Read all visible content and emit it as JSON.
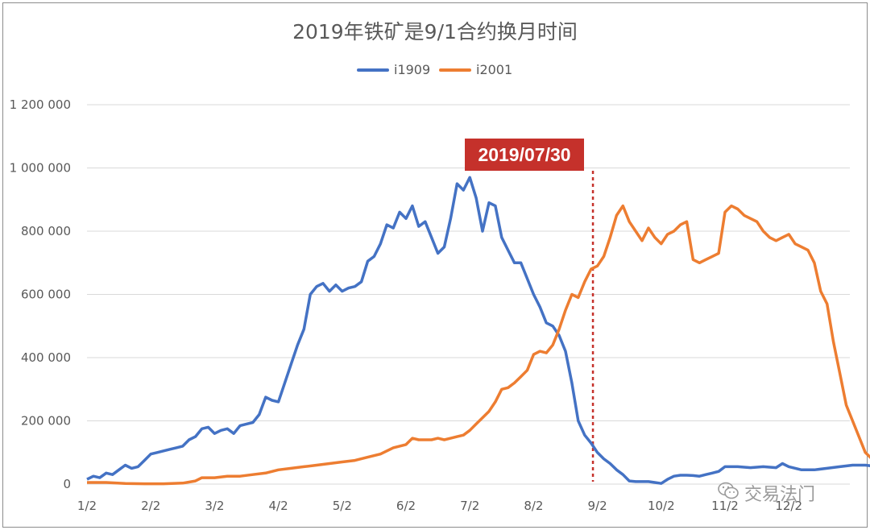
{
  "chart_data": {
    "type": "line",
    "title": "2019年铁矿是9/1合约换月时间",
    "ylim": [
      0,
      1200000
    ],
    "yticks": [
      "0",
      "200000",
      "400000",
      "600000",
      "800000",
      "1000000",
      "1200000"
    ],
    "categories": [
      "1/2",
      "2/2",
      "3/2",
      "4/2",
      "5/2",
      "6/2",
      "7/2",
      "8/2",
      "9/2",
      "10/2",
      "11/2",
      "12/2"
    ],
    "grid": true,
    "legend": "top",
    "marker": {
      "x": 7.93,
      "label": "2019/07/30",
      "color": "#c5312b"
    },
    "series": [
      {
        "name": "i1909",
        "color": "#4472c4",
        "points": [
          [
            0,
            15000
          ],
          [
            0.1,
            25000
          ],
          [
            0.2,
            20000
          ],
          [
            0.3,
            35000
          ],
          [
            0.4,
            30000
          ],
          [
            0.5,
            45000
          ],
          [
            0.6,
            60000
          ],
          [
            0.7,
            50000
          ],
          [
            0.8,
            55000
          ],
          [
            0.9,
            75000
          ],
          [
            1.0,
            95000
          ],
          [
            1.1,
            100000
          ],
          [
            1.2,
            105000
          ],
          [
            1.3,
            110000
          ],
          [
            1.4,
            115000
          ],
          [
            1.5,
            120000
          ],
          [
            1.6,
            140000
          ],
          [
            1.7,
            150000
          ],
          [
            1.8,
            175000
          ],
          [
            1.9,
            180000
          ],
          [
            2.0,
            160000
          ],
          [
            2.1,
            170000
          ],
          [
            2.2,
            175000
          ],
          [
            2.3,
            160000
          ],
          [
            2.4,
            185000
          ],
          [
            2.5,
            190000
          ],
          [
            2.6,
            195000
          ],
          [
            2.7,
            220000
          ],
          [
            2.8,
            275000
          ],
          [
            2.9,
            265000
          ],
          [
            3.0,
            260000
          ],
          [
            3.1,
            320000
          ],
          [
            3.2,
            380000
          ],
          [
            3.3,
            440000
          ],
          [
            3.4,
            490000
          ],
          [
            3.5,
            600000
          ],
          [
            3.6,
            625000
          ],
          [
            3.7,
            635000
          ],
          [
            3.8,
            610000
          ],
          [
            3.9,
            630000
          ],
          [
            4.0,
            610000
          ],
          [
            4.1,
            620000
          ],
          [
            4.2,
            625000
          ],
          [
            4.3,
            640000
          ],
          [
            4.4,
            705000
          ],
          [
            4.5,
            720000
          ],
          [
            4.6,
            760000
          ],
          [
            4.7,
            820000
          ],
          [
            4.8,
            810000
          ],
          [
            4.9,
            860000
          ],
          [
            5.0,
            840000
          ],
          [
            5.1,
            880000
          ],
          [
            5.2,
            815000
          ],
          [
            5.3,
            830000
          ],
          [
            5.4,
            780000
          ],
          [
            5.5,
            730000
          ],
          [
            5.6,
            750000
          ],
          [
            5.7,
            840000
          ],
          [
            5.8,
            950000
          ],
          [
            5.9,
            930000
          ],
          [
            6.0,
            970000
          ],
          [
            6.1,
            905000
          ],
          [
            6.2,
            800000
          ],
          [
            6.3,
            890000
          ],
          [
            6.4,
            880000
          ],
          [
            6.5,
            780000
          ],
          [
            6.6,
            740000
          ],
          [
            6.7,
            700000
          ],
          [
            6.8,
            700000
          ],
          [
            6.9,
            650000
          ],
          [
            7.0,
            600000
          ],
          [
            7.1,
            560000
          ],
          [
            7.2,
            510000
          ],
          [
            7.3,
            500000
          ],
          [
            7.4,
            470000
          ],
          [
            7.5,
            420000
          ],
          [
            7.6,
            320000
          ],
          [
            7.7,
            200000
          ],
          [
            7.8,
            155000
          ],
          [
            7.9,
            130000
          ],
          [
            8.0,
            100000
          ],
          [
            8.1,
            80000
          ],
          [
            8.2,
            65000
          ],
          [
            8.3,
            45000
          ],
          [
            8.4,
            30000
          ],
          [
            8.5,
            10000
          ],
          [
            8.6,
            8000
          ],
          [
            8.7,
            8000
          ],
          [
            8.8,
            8000
          ],
          [
            8.9,
            5000
          ],
          [
            9.0,
            2000
          ],
          [
            9.1,
            15000
          ],
          [
            9.2,
            25000
          ],
          [
            9.3,
            28000
          ],
          [
            9.4,
            28000
          ],
          [
            9.5,
            27000
          ],
          [
            9.6,
            25000
          ],
          [
            9.7,
            30000
          ],
          [
            9.8,
            35000
          ],
          [
            9.9,
            40000
          ],
          [
            10.0,
            55000
          ],
          [
            10.2,
            55000
          ],
          [
            10.4,
            52000
          ],
          [
            10.6,
            55000
          ],
          [
            10.8,
            52000
          ],
          [
            10.9,
            65000
          ],
          [
            11.0,
            55000
          ],
          [
            11.2,
            45000
          ],
          [
            11.4,
            45000
          ],
          [
            11.6,
            50000
          ],
          [
            11.8,
            55000
          ],
          [
            12.0,
            60000
          ],
          [
            12.2,
            60000
          ],
          [
            12.4,
            55000
          ],
          [
            12.55,
            55000
          ]
        ]
      },
      {
        "name": "i2001",
        "color": "#ed7d31",
        "points": [
          [
            0,
            5000
          ],
          [
            0.3,
            5000
          ],
          [
            0.6,
            2000
          ],
          [
            0.9,
            1000
          ],
          [
            1.2,
            1000
          ],
          [
            1.5,
            3000
          ],
          [
            1.7,
            10000
          ],
          [
            1.8,
            20000
          ],
          [
            2.0,
            20000
          ],
          [
            2.2,
            25000
          ],
          [
            2.4,
            25000
          ],
          [
            2.6,
            30000
          ],
          [
            2.8,
            35000
          ],
          [
            3.0,
            45000
          ],
          [
            3.2,
            50000
          ],
          [
            3.4,
            55000
          ],
          [
            3.6,
            60000
          ],
          [
            3.8,
            65000
          ],
          [
            4.0,
            70000
          ],
          [
            4.2,
            75000
          ],
          [
            4.4,
            85000
          ],
          [
            4.6,
            95000
          ],
          [
            4.8,
            115000
          ],
          [
            5.0,
            125000
          ],
          [
            5.1,
            145000
          ],
          [
            5.2,
            140000
          ],
          [
            5.4,
            140000
          ],
          [
            5.5,
            145000
          ],
          [
            5.6,
            140000
          ],
          [
            5.7,
            145000
          ],
          [
            5.8,
            150000
          ],
          [
            5.9,
            155000
          ],
          [
            6.0,
            170000
          ],
          [
            6.1,
            190000
          ],
          [
            6.2,
            210000
          ],
          [
            6.3,
            230000
          ],
          [
            6.4,
            260000
          ],
          [
            6.5,
            300000
          ],
          [
            6.6,
            305000
          ],
          [
            6.7,
            320000
          ],
          [
            6.8,
            340000
          ],
          [
            6.9,
            360000
          ],
          [
            7.0,
            410000
          ],
          [
            7.1,
            420000
          ],
          [
            7.2,
            415000
          ],
          [
            7.3,
            440000
          ],
          [
            7.4,
            490000
          ],
          [
            7.5,
            550000
          ],
          [
            7.6,
            600000
          ],
          [
            7.7,
            590000
          ],
          [
            7.8,
            640000
          ],
          [
            7.9,
            680000
          ],
          [
            8.0,
            690000
          ],
          [
            8.1,
            720000
          ],
          [
            8.2,
            780000
          ],
          [
            8.3,
            850000
          ],
          [
            8.4,
            880000
          ],
          [
            8.5,
            830000
          ],
          [
            8.6,
            800000
          ],
          [
            8.7,
            770000
          ],
          [
            8.8,
            810000
          ],
          [
            8.9,
            780000
          ],
          [
            9.0,
            760000
          ],
          [
            9.1,
            790000
          ],
          [
            9.2,
            800000
          ],
          [
            9.3,
            820000
          ],
          [
            9.4,
            830000
          ],
          [
            9.5,
            710000
          ],
          [
            9.6,
            700000
          ],
          [
            9.7,
            710000
          ],
          [
            9.8,
            720000
          ],
          [
            9.9,
            730000
          ],
          [
            10.0,
            860000
          ],
          [
            10.1,
            880000
          ],
          [
            10.2,
            870000
          ],
          [
            10.3,
            850000
          ],
          [
            10.4,
            840000
          ],
          [
            10.5,
            830000
          ],
          [
            10.6,
            800000
          ],
          [
            10.7,
            780000
          ],
          [
            10.8,
            770000
          ],
          [
            10.9,
            780000
          ],
          [
            11.0,
            790000
          ],
          [
            11.1,
            760000
          ],
          [
            11.2,
            750000
          ],
          [
            11.3,
            740000
          ],
          [
            11.4,
            700000
          ],
          [
            11.5,
            610000
          ],
          [
            11.6,
            570000
          ],
          [
            11.7,
            450000
          ],
          [
            11.8,
            350000
          ],
          [
            11.9,
            250000
          ],
          [
            12.0,
            200000
          ],
          [
            12.1,
            150000
          ],
          [
            12.2,
            100000
          ],
          [
            12.3,
            80000
          ],
          [
            12.4,
            60000
          ],
          [
            12.5,
            40000
          ],
          [
            12.55,
            5000
          ]
        ]
      }
    ]
  },
  "watermark": {
    "text": "交易法门",
    "icon": "wechat-icon"
  }
}
